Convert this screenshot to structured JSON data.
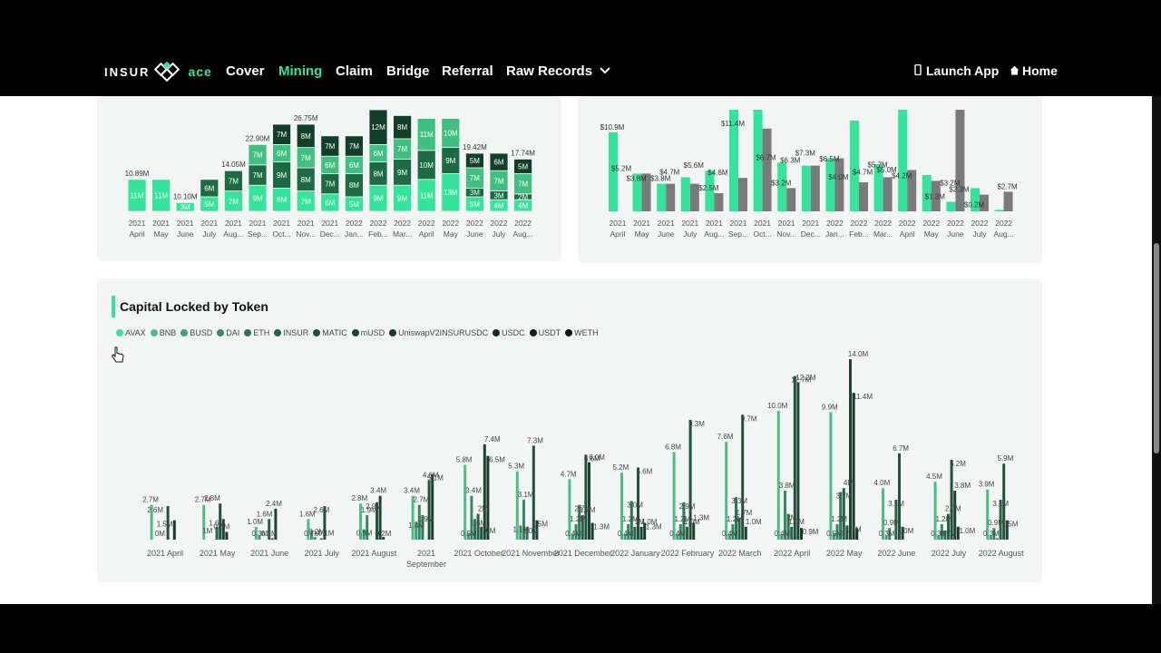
{
  "nav": {
    "logo_left": "INSUR",
    "logo_right": "ace",
    "links": [
      {
        "label": "Cover",
        "active": false
      },
      {
        "label": "Mining",
        "active": true
      },
      {
        "label": "Claim",
        "active": false
      },
      {
        "label": "Bridge",
        "active": false
      },
      {
        "label": "Referral",
        "active": false
      },
      {
        "label": "Raw Records",
        "active": false
      }
    ],
    "launch_app": "Launch App",
    "home": "Home"
  },
  "capital_locked": {
    "title": "Capital Locked by Token",
    "legend": [
      {
        "name": "AVAX",
        "color": "#33e49a"
      },
      {
        "name": "BNB",
        "color": "#4dbd86"
      },
      {
        "name": "BUSD",
        "color": "#3fa071"
      },
      {
        "name": "DAI",
        "color": "#358a60"
      },
      {
        "name": "ETH",
        "color": "#2c7751"
      },
      {
        "name": "INSUR",
        "color": "#246444"
      },
      {
        "name": "MATIC",
        "color": "#1f5238"
      },
      {
        "name": "mUSD",
        "color": "#1b4430"
      },
      {
        "name": "UniswapV2INSURUSDC",
        "color": "#173a29"
      },
      {
        "name": "USDC",
        "color": "#142f22"
      },
      {
        "name": "USDT",
        "color": "#10241a"
      },
      {
        "name": "WETH",
        "color": "#0b1a12"
      }
    ]
  },
  "chart_data": [
    {
      "type": "bar",
      "stacked": true,
      "categories": [
        "2021 April",
        "2021 May",
        "2021 June",
        "2021 July",
        "2021 Aug...",
        "2021 Sep...",
        "2021 Oct...",
        "2021 Nov...",
        "2021 Dec...",
        "2022 Jan...",
        "2022 Feb...",
        "2022 Mar...",
        "2022 April",
        "2022 May",
        "2022 June",
        "2022 July",
        "2022 Aug..."
      ],
      "totals": [
        "10.89M",
        "",
        "10.10M",
        "",
        "14.05M",
        "22.90M",
        "",
        "26.75M",
        "",
        "",
        "",
        "",
        "",
        "",
        "19.42M",
        "",
        "17.74M"
      ],
      "segments": [
        [
          "11M"
        ],
        [
          "11M"
        ],
        [
          "3M"
        ],
        [
          "5M",
          "6M"
        ],
        [
          "7M",
          "7M"
        ],
        [
          "9M",
          "7M",
          "7M"
        ],
        [
          "8M",
          "9M",
          "6M",
          "7M"
        ],
        [
          "7M",
          "8M",
          "7M",
          "8M"
        ],
        [
          "6M",
          "7M",
          "6M",
          "7M"
        ],
        [
          "5M",
          "8M",
          "6M",
          "7M"
        ],
        [
          "9M",
          "8M",
          "6M",
          "12M"
        ],
        [
          "9M",
          "9M",
          "7M",
          "8M"
        ],
        [
          "11M",
          "10M",
          "11M"
        ],
        [
          "13M",
          "9M",
          "10M"
        ],
        [
          "5M",
          "3M",
          "7M",
          "5M"
        ],
        [
          "4M",
          "3M",
          "7M",
          "6M"
        ],
        [
          "4M",
          "2M",
          "7M",
          "5M"
        ]
      ]
    },
    {
      "type": "bar",
      "categories": [
        "2021 April",
        "2021 May",
        "2021 June",
        "2021 July",
        "2021 Aug...",
        "2021 Sep...",
        "2021 Oct...",
        "2021 Nov...",
        "2021 Dec...",
        "2022 Jan...",
        "2022 Feb...",
        "2022 Mar...",
        "2022 April",
        "2022 May",
        "2022 June",
        "2022 July",
        "2022 Aug..."
      ],
      "series": [
        {
          "values": [
            10.9,
            5.2,
            3.8,
            4.7,
            5.6,
            14.0,
            14.0,
            6.7,
            6.3,
            7.3,
            12.5,
            6.5,
            14.0,
            5.0,
            1.3,
            3.2,
            0.2
          ]
        },
        {
          "values": [
            null,
            5.2,
            3.8,
            3.8,
            2.5,
            4.6,
            11.4,
            3.2,
            6.3,
            7.3,
            4.0,
            4.7,
            5.7,
            4.2,
            14.0,
            2.3,
            2.7
          ]
        }
      ],
      "value_labels": [
        "$10.9M",
        "$5.2M",
        "$3.8M",
        "$4.7M",
        "$3.8M",
        "$5.6M",
        "$2.5M",
        "$4.6M",
        "$11.4M",
        "$6.7M",
        "$3.2M",
        "$6.3M",
        "$7.3M",
        "$4.0M",
        "$6.5M",
        "$4.7M",
        "$5.7M",
        "$5.0M",
        "$4.2M",
        "$1.3M",
        "$3.2M",
        "$2.3M",
        "$0.2M",
        "$2.7M"
      ]
    },
    {
      "type": "bar",
      "title": "Capital Locked by Token",
      "categories": [
        "2021 April",
        "2021 May",
        "2021 June",
        "2021 July",
        "2021 August",
        "2021 September",
        "2021 October",
        "2021 November",
        "2021 December",
        "2022 January",
        "2022 February",
        "2022 March",
        "2022 April",
        "2022 May",
        "2022 June",
        "2022 July",
        "2022 August"
      ],
      "groups": [
        {
          "bars": [
            0,
            2.7,
            0,
            0,
            0,
            0,
            2.6,
            0,
            1.5,
            0,
            0,
            0
          ],
          "labels": [
            "2.7M",
            "2.6M",
            "0M",
            "1.5M"
          ]
        },
        {
          "bars": [
            0,
            2.7,
            0,
            0,
            0,
            1,
            2.8,
            1.6,
            0.6,
            0,
            0,
            0
          ],
          "labels": [
            "2.7M",
            "1M",
            "2.8M",
            "1.6M",
            "0.6M"
          ]
        },
        {
          "bars": [
            0,
            1.0,
            0.3,
            0,
            0,
            1.6,
            0.1,
            2.4,
            0,
            0,
            0,
            0
          ],
          "labels": [
            "1.0M",
            "0.3M",
            "1.6M",
            "0.1M",
            "2.4M"
          ]
        },
        {
          "bars": [
            0,
            1.6,
            0.7,
            0.2,
            0,
            0.1,
            2.6,
            0,
            0,
            0,
            0,
            0
          ],
          "labels": [
            "1.6M",
            "0.7M",
            "0.2M",
            "2.6M",
            "0.1M"
          ]
        },
        {
          "bars": [
            0,
            2.8,
            0.8,
            1.9,
            0,
            0,
            2.9,
            3.4,
            0.2,
            0,
            0,
            0
          ],
          "labels": [
            "2.8M",
            "0.8M",
            "1.9M",
            "2.9M",
            "3.4M",
            "0.2M"
          ]
        },
        {
          "bars": [
            0,
            3.4,
            1.4,
            2.7,
            1.9,
            0,
            4.6,
            5.1,
            0,
            0,
            0,
            0
          ],
          "labels": [
            "3.4M",
            "1.4M",
            "2.7M",
            "1.9M",
            "4.6M",
            "5.1M"
          ]
        },
        {
          "bars": [
            0,
            5.8,
            0.5,
            3.4,
            1.6,
            2,
            1.0,
            7.4,
            6.5,
            0,
            0,
            0
          ],
          "labels": [
            "5.8M",
            "0.5M",
            "3.4M",
            "1.6M",
            "2M",
            "1.0M",
            "7.4M",
            "6.5M"
          ]
        },
        {
          "bars": [
            0,
            5.3,
            1.1,
            3.1,
            1.0,
            0,
            7.3,
            1.5,
            0,
            0,
            0,
            0
          ],
          "labels": [
            "5.3M",
            "1.1M",
            "3.1M",
            "1.0M",
            "7.3M",
            "1.5M"
          ]
        },
        {
          "bars": [
            0,
            4.7,
            0.4,
            1.2,
            2.7,
            1.9,
            6.6,
            6.0,
            1.3,
            0,
            0,
            0
          ],
          "labels": [
            "4.7M",
            "0.4M",
            "1.2M",
            "2.7M",
            "1.9M",
            "6.6M",
            "6.0M",
            "1.3M"
          ]
        },
        {
          "bars": [
            0,
            5.2,
            0.4,
            1.2,
            3.0,
            1,
            5.6,
            1.0,
            1.3,
            0,
            0,
            0
          ],
          "labels": [
            "5.2M",
            "0.4M",
            "1.2M",
            "3.0M",
            "1M",
            "5.6M",
            "1.0M",
            "1.3M"
          ]
        },
        {
          "bars": [
            0,
            6.8,
            0.4,
            1.2,
            2.9,
            1.0,
            9.3,
            1.3,
            0,
            0,
            0,
            0
          ],
          "labels": [
            "6.8M",
            "0.4M",
            "1.2M",
            "2.9M",
            "1.0M",
            "9.3M",
            "1.3M"
          ]
        },
        {
          "bars": [
            0,
            7.6,
            0.4,
            1.2,
            3.3,
            1.7,
            9.7,
            1.0,
            0,
            0,
            0,
            0
          ],
          "labels": [
            "7.6M",
            "0.4M",
            "1.2M",
            "3.3M",
            "1.7M",
            "9.7M",
            "1.0M"
          ]
        },
        {
          "bars": [
            0,
            10.0,
            0.4,
            3.8,
            2,
            1.0,
            12.7,
            12.2,
            0.9,
            0,
            0,
            0
          ],
          "labels": [
            "10.0M",
            "0.4M",
            "3.8M",
            "2M",
            "1.0M",
            "12.7M",
            "12.2M",
            "0.9M"
          ]
        },
        {
          "bars": [
            0,
            9.9,
            0.5,
            1.2,
            3.7,
            4,
            1.1,
            14.0,
            11.4,
            0.9,
            0,
            0
          ],
          "labels": [
            "9.9M",
            "0.5M",
            "1.2M",
            "3.7M",
            "4M",
            "1.1M",
            "14.0M",
            "11.4M"
          ]
        },
        {
          "bars": [
            0,
            4.0,
            0.3,
            0.9,
            0,
            3.1,
            6.7,
            1.0,
            0,
            0,
            0,
            0
          ],
          "labels": [
            "4.0M",
            "0.3M",
            "0.9M",
            "3.1M",
            "6.7M",
            "1.0M"
          ]
        },
        {
          "bars": [
            0,
            4.5,
            0.3,
            1.2,
            0.7,
            2.0,
            6.2,
            3.8,
            1.0,
            0,
            0,
            0
          ],
          "labels": [
            "4.5M",
            "0.3M",
            "1.2M",
            "0.7M",
            "2.0M",
            "6.2M",
            "3.8M",
            "1.0M"
          ]
        },
        {
          "bars": [
            0,
            3.9,
            0.3,
            0.9,
            0.1,
            3.1,
            5.9,
            1.5,
            0,
            0,
            0,
            0
          ],
          "labels": [
            "3.9M",
            "0.3M",
            "0.9M",
            "3.1M",
            "5.9M",
            "1.5M"
          ]
        }
      ]
    }
  ]
}
